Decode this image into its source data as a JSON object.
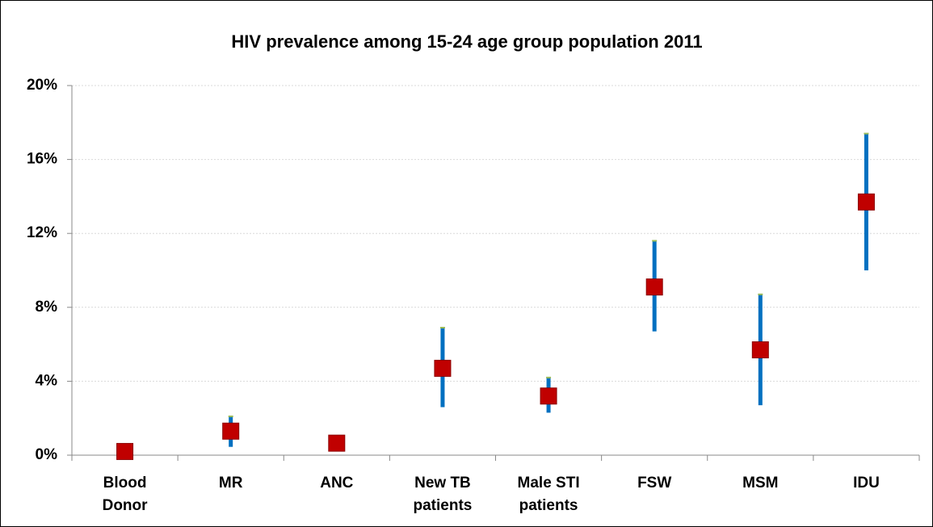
{
  "chart_data": {
    "type": "range-dot",
    "title": "HIV prevalence among 15-24 age group population 2011",
    "categories": [
      "Blood Donor",
      "MR",
      "ANC",
      "New TB patients",
      "Male STI patients",
      "FSW",
      "MSM",
      "IDU"
    ],
    "values": [
      0.2,
      1.3,
      0.65,
      4.7,
      3.2,
      9.1,
      5.7,
      13.7
    ],
    "low": [
      null,
      0.45,
      null,
      2.6,
      2.3,
      6.7,
      2.7,
      10.0
    ],
    "high": [
      null,
      2.1,
      null,
      6.9,
      4.2,
      11.6,
      8.7,
      17.4
    ],
    "color": "#c00000",
    "range_color": "#0070c0",
    "ylim": [
      0,
      20
    ],
    "yticks": [
      {
        "value": 0,
        "label": "0%"
      },
      {
        "value": 4,
        "label": "4%"
      },
      {
        "value": 8,
        "label": "8%"
      },
      {
        "value": 12,
        "label": "12%"
      },
      {
        "value": 16,
        "label": "16%"
      },
      {
        "value": 20,
        "label": "20%"
      }
    ],
    "grid": true
  }
}
